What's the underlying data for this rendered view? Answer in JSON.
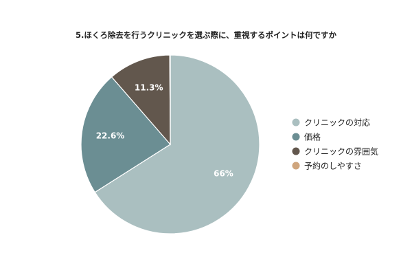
{
  "chart_data": {
    "type": "pie",
    "title": "5.ほくろ除去を行うクリニックを選ぶ際に、重視するポイントは何ですか",
    "slices": [
      {
        "label": "クリニックの対応",
        "value": 66,
        "display": "66%",
        "color": "#aabfc0"
      },
      {
        "label": "価格",
        "value": 22.6,
        "display": "22.6%",
        "color": "#6b8e93"
      },
      {
        "label": "クリニックの雰囲気",
        "value": 11.3,
        "display": "11.3%",
        "color": "#62574d"
      },
      {
        "label": "予約のしやすさ",
        "value": 0.1,
        "display": "",
        "color": "#cfa57d"
      }
    ],
    "legend_placement": "right"
  }
}
